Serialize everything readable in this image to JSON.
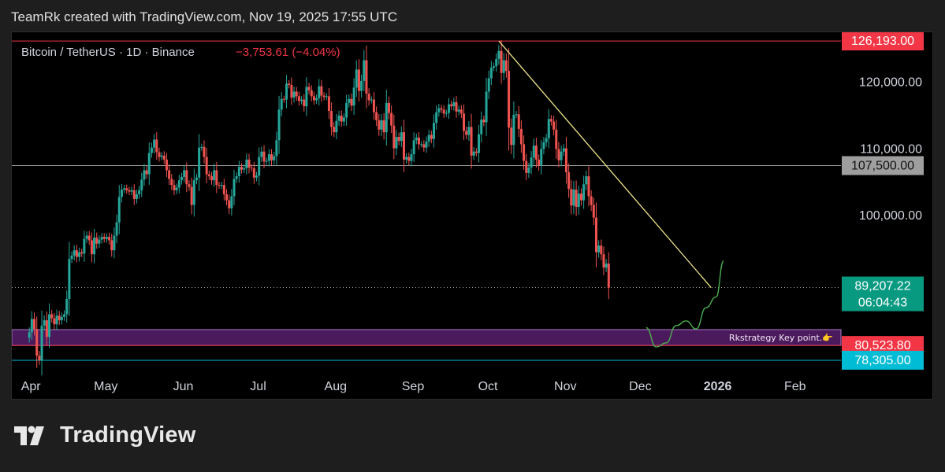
{
  "header": {
    "text": "TeamRk created with TradingView.com, Nov 19, 2025 17:55 UTC"
  },
  "footer": {
    "brand": "TradingView",
    "logo_icon": "tradingview-logo-icon"
  },
  "chart_data": {
    "type": "candlestick",
    "title": "Bitcoin / TetherUS · 1D · Binance",
    "change_text": "−3,753.61 (−4.04%)",
    "colors": {
      "up": "#26a69a",
      "down": "#ef5350",
      "trendline": "#f0e68c",
      "projection": "#4caf50",
      "zone": "#4a1a5c"
    },
    "x_labels": [
      "Apr",
      "May",
      "Jun",
      "Jul",
      "Aug",
      "Sep",
      "Oct",
      "Nov",
      "Dec",
      "2026",
      "Feb"
    ],
    "y_ticks": [
      100000,
      110000,
      120000
    ],
    "y_tick_labels": [
      "100,000.00",
      "110,000.00",
      "120,000.00"
    ],
    "ylim": [
      77000,
      127500
    ],
    "xlim": [
      "2025-03-25",
      "2026-02-20"
    ],
    "price_tags": [
      {
        "value": 126193.0,
        "label": "126,193.00",
        "color": "#f23645",
        "line": "solid"
      },
      {
        "value": 107500.0,
        "label": "107,500.00",
        "color": "#9e9e9e",
        "line": "solid"
      },
      {
        "value": 89207.22,
        "label": "89,207.22",
        "sublabel": "06:04:43",
        "color": "#089981",
        "line": "dotted"
      },
      {
        "value": 80523.8,
        "label": "80,523.80",
        "color": "#f23645",
        "line": "solid"
      },
      {
        "value": 78305.0,
        "label": "78,305.00",
        "color": "#00bcd4",
        "line": "solid"
      }
    ],
    "key_zone": {
      "top": 82900,
      "bottom": 80523.8,
      "start": "2025-03-25",
      "end": "2026-02-20",
      "label": "Rkstrategy Key point.👉"
    },
    "trendline": [
      {
        "date": "2025-10-06",
        "value": 126193
      },
      {
        "date": "2025-12-30",
        "value": 89207
      }
    ],
    "projection": [
      {
        "date": "2025-12-04",
        "value": 83200
      },
      {
        "date": "2025-12-08",
        "value": 80300
      },
      {
        "date": "2025-12-12",
        "value": 80900
      },
      {
        "date": "2025-12-16",
        "value": 83500
      },
      {
        "date": "2025-12-20",
        "value": 84200
      },
      {
        "date": "2025-12-24",
        "value": 83000
      },
      {
        "date": "2025-12-28",
        "value": 86200
      },
      {
        "date": "2026-01-01",
        "value": 87800
      },
      {
        "date": "2026-01-04",
        "value": 93200
      }
    ],
    "candles": [
      {
        "start": "2025-04-01",
        "prices": [
          82500,
          84500,
          83000,
          79000,
          78300,
          83500,
          84300,
          81800,
          85200,
          84600,
          83700,
          85000,
          84300,
          84800,
          85200,
          87500,
          93500,
          94000,
          94800,
          93800,
          94500,
          94300,
          96500,
          97000,
          96300,
          94200,
          96700,
          95800,
          96400,
          96800
        ]
      },
      {
        "start": "2025-05-01",
        "prices": [
          96500,
          96800,
          96300,
          94800,
          97000,
          99000,
          102800,
          103900,
          104100,
          103800,
          103600,
          103800,
          102500,
          103200,
          103800,
          105400,
          106800,
          106200,
          109400,
          110200,
          111400,
          109500,
          108800,
          109000,
          108400,
          106800,
          105500,
          104600,
          103800,
          104200,
          105300
        ]
      },
      {
        "start": "2025-06-01",
        "prices": [
          105800,
          106800,
          104700,
          104300,
          101600,
          105300,
          105700,
          110200,
          110300,
          108800,
          106200,
          105900,
          105300,
          106800,
          104600,
          104500,
          104600,
          103200,
          102300,
          101100,
          102900,
          105500,
          105900,
          107300,
          106900,
          107100,
          108400,
          107200,
          107100,
          105700
        ]
      },
      {
        "start": "2025-07-01",
        "prices": [
          106000,
          108800,
          109600,
          108100,
          108200,
          109200,
          108300,
          108900,
          111300,
          115900,
          117500,
          117400,
          119800,
          119600,
          117700,
          118600,
          117900,
          117200,
          117400,
          116400,
          119300,
          118800,
          117900,
          117300,
          117600,
          119400,
          118000,
          117800,
          117900,
          115700,
          113300
        ]
      },
      {
        "start": "2025-08-01",
        "prices": [
          112500,
          114200,
          115000,
          114100,
          114700,
          116900,
          117500,
          116500,
          119200,
          121900,
          118700,
          120200,
          123300,
          118300,
          117300,
          117400,
          115500,
          114300,
          112900,
          114300,
          112500,
          116900,
          115400,
          113500,
          110100,
          111800,
          111200,
          112500,
          108400,
          108800,
          108200
        ]
      },
      {
        "start": "2025-09-01",
        "prices": [
          109200,
          111300,
          111700,
          110700,
          110700,
          110200,
          111100,
          112100,
          111500,
          113900,
          115500,
          116100,
          115900,
          115300,
          115400,
          116700,
          116400,
          117000,
          115600,
          115900,
          115300,
          112700,
          112100,
          113300,
          109000,
          109600,
          109400,
          112200,
          114400,
          114000
        ]
      },
      {
        "start": "2025-10-01",
        "prices": [
          118600,
          120600,
          122200,
          122400,
          123500,
          124700,
          121400,
          123300,
          121700,
          113200,
          110600,
          115100,
          115200,
          113000,
          110700,
          108200,
          106400,
          107200,
          108700,
          110500,
          108400,
          107500,
          110000,
          111000,
          111600,
          114500,
          114100,
          112900,
          110000,
          108300,
          109600
        ]
      },
      {
        "start": "2025-11-01",
        "prices": [
          110100,
          106500,
          104000,
          101500,
          103900,
          101300,
          103300,
          102300,
          104700,
          105900,
          102900,
          101600,
          99700,
          94500,
          95500,
          94200,
          92200,
          92800,
          89200
        ]
      }
    ]
  }
}
